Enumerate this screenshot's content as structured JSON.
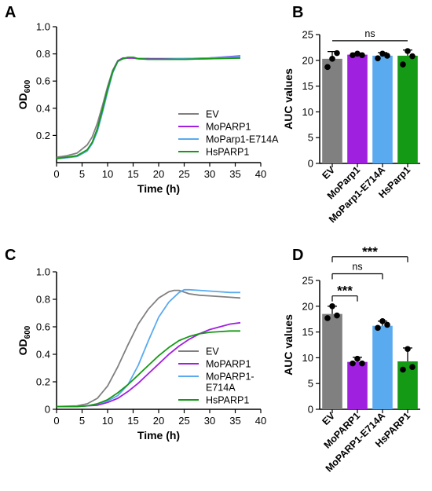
{
  "colors": {
    "EV": "#808080",
    "MoPARP1": "#a020e0",
    "MoParp1-E714A": "#5aaaf0",
    "HsPARP1": "#159a15",
    "points": "#000000",
    "axes": "#000000"
  },
  "chart_data": [
    {
      "panel": "A",
      "type": "line",
      "xlabel": "Time (h)",
      "ylabel": "OD",
      "ylabel_sub": "600",
      "xlim": [
        0,
        40
      ],
      "ylim": [
        0,
        1.0
      ],
      "xticks": [
        0,
        5,
        10,
        15,
        20,
        25,
        30,
        35,
        40
      ],
      "yticks": [
        0.2,
        0.4,
        0.6,
        0.8,
        1.0
      ],
      "ytick_labels": [
        "0.2",
        "0.4",
        "0.6",
        "0.8",
        "1.0"
      ],
      "grid": false,
      "legend_placement": "bottom-right",
      "series": [
        {
          "name": "EV",
          "color_key": "EV",
          "x": [
            0,
            2,
            4,
            6,
            7,
            8,
            9,
            10,
            11,
            12,
            13,
            14,
            15,
            16,
            18,
            20,
            25,
            30,
            36
          ],
          "y": [
            0.04,
            0.05,
            0.07,
            0.13,
            0.19,
            0.29,
            0.42,
            0.56,
            0.68,
            0.75,
            0.765,
            0.77,
            0.77,
            0.765,
            0.765,
            0.76,
            0.76,
            0.765,
            0.77
          ]
        },
        {
          "name": "MoPARP1",
          "color_key": "MoPARP1",
          "x": [
            0,
            2,
            4,
            6,
            7,
            8,
            9,
            10,
            11,
            12,
            13,
            14,
            15,
            16,
            18,
            20,
            25,
            30,
            36
          ],
          "y": [
            0.03,
            0.04,
            0.05,
            0.09,
            0.15,
            0.25,
            0.39,
            0.54,
            0.67,
            0.75,
            0.77,
            0.77,
            0.77,
            0.765,
            0.765,
            0.765,
            0.765,
            0.77,
            0.785
          ]
        },
        {
          "name": "MoParp1-E714A",
          "color_key": "MoParp1-E714A",
          "x": [
            0,
            2,
            4,
            6,
            7,
            8,
            9,
            10,
            11,
            12,
            13,
            14,
            15,
            16,
            18,
            20,
            25,
            30,
            36
          ],
          "y": [
            0.03,
            0.035,
            0.045,
            0.085,
            0.14,
            0.23,
            0.37,
            0.52,
            0.66,
            0.745,
            0.765,
            0.775,
            0.775,
            0.765,
            0.76,
            0.76,
            0.765,
            0.77,
            0.78
          ]
        },
        {
          "name": "HsPARP1",
          "color_key": "HsPARP1",
          "x": [
            0,
            2,
            4,
            6,
            7,
            8,
            9,
            10,
            11,
            12,
            13,
            14,
            15,
            16,
            18,
            20,
            25,
            30,
            36
          ],
          "y": [
            0.03,
            0.04,
            0.05,
            0.095,
            0.15,
            0.25,
            0.39,
            0.54,
            0.67,
            0.745,
            0.765,
            0.775,
            0.775,
            0.765,
            0.76,
            0.76,
            0.76,
            0.765,
            0.77
          ]
        }
      ]
    },
    {
      "panel": "B",
      "type": "bar",
      "ylabel": "AUC values",
      "ylim": [
        0,
        25
      ],
      "yticks": [
        0,
        5,
        10,
        15,
        20,
        25
      ],
      "categories": [
        "EV",
        "MoParp1",
        "MoParp1-E714A",
        "HsParp1"
      ],
      "color_keys": [
        "EV",
        "MoPARP1",
        "MoParp1-E714A",
        "HsPARP1"
      ],
      "values": [
        20.3,
        21.1,
        20.9,
        20.9
      ],
      "errors": [
        1.4,
        0.3,
        0.6,
        1.1
      ],
      "points": [
        [
          20.3,
          21.4,
          18.7
        ],
        [
          21.3,
          21.0,
          21.0
        ],
        [
          21.3,
          20.9,
          20.4
        ],
        [
          21.8,
          20.8,
          19.2
        ]
      ],
      "significance": [
        {
          "from": 0,
          "to": 3,
          "label": "ns",
          "y": 23.8
        }
      ]
    },
    {
      "panel": "C",
      "type": "line",
      "xlabel": "Time (h)",
      "ylabel": "OD",
      "ylabel_sub": "600",
      "xlim": [
        0,
        40
      ],
      "ylim": [
        0,
        1.0
      ],
      "xticks": [
        0,
        5,
        10,
        15,
        20,
        25,
        30,
        35,
        40
      ],
      "yticks": [
        0,
        0.2,
        0.4,
        0.6,
        0.8,
        1.0
      ],
      "ytick_labels": [
        "0",
        "0.2",
        "0.4",
        "0.6",
        "0.8",
        "1.0"
      ],
      "grid": false,
      "legend_placement": "bottom-right",
      "series": [
        {
          "name": "EV",
          "color_key": "EV",
          "x": [
            0,
            4,
            6,
            8,
            10,
            12,
            14,
            16,
            18,
            20,
            22,
            23,
            24,
            26,
            28,
            30,
            32,
            34,
            36
          ],
          "y": [
            0.02,
            0.025,
            0.04,
            0.08,
            0.17,
            0.31,
            0.47,
            0.62,
            0.73,
            0.81,
            0.855,
            0.865,
            0.865,
            0.84,
            0.83,
            0.825,
            0.82,
            0.815,
            0.81
          ]
        },
        {
          "name": "MoPARP1",
          "color_key": "MoPARP1",
          "x": [
            0,
            4,
            6,
            8,
            10,
            12,
            14,
            16,
            18,
            20,
            22,
            24,
            26,
            28,
            30,
            32,
            34,
            36
          ],
          "y": [
            0.02,
            0.02,
            0.025,
            0.03,
            0.05,
            0.08,
            0.13,
            0.19,
            0.26,
            0.33,
            0.4,
            0.46,
            0.51,
            0.55,
            0.58,
            0.6,
            0.62,
            0.63
          ]
        },
        {
          "name": "MoPARP1-\nE714A",
          "color_key": "MoParp1-E714A",
          "x": [
            0,
            4,
            6,
            8,
            10,
            12,
            14,
            16,
            18,
            20,
            22,
            24,
            25,
            26,
            28,
            30,
            32,
            34,
            36
          ],
          "y": [
            0.02,
            0.02,
            0.025,
            0.04,
            0.06,
            0.1,
            0.18,
            0.32,
            0.5,
            0.67,
            0.78,
            0.85,
            0.87,
            0.87,
            0.865,
            0.86,
            0.855,
            0.85,
            0.85
          ]
        },
        {
          "name": "HsPARP1",
          "color_key": "HsPARP1",
          "x": [
            0,
            4,
            6,
            8,
            10,
            12,
            14,
            16,
            18,
            20,
            22,
            24,
            26,
            28,
            30,
            32,
            34,
            36
          ],
          "y": [
            0.02,
            0.02,
            0.025,
            0.04,
            0.07,
            0.12,
            0.18,
            0.25,
            0.32,
            0.39,
            0.45,
            0.5,
            0.53,
            0.55,
            0.56,
            0.565,
            0.57,
            0.57
          ]
        }
      ]
    },
    {
      "panel": "D",
      "type": "bar",
      "ylabel": "AUC values",
      "ylim": [
        0,
        25
      ],
      "yticks": [
        0,
        5,
        10,
        15,
        20,
        25
      ],
      "categories": [
        "EV",
        "MoPARP1",
        "MoPARP1-E714A",
        "HsPARP1"
      ],
      "color_keys": [
        "EV",
        "MoPARP1",
        "MoParp1-E714A",
        "HsPARP1"
      ],
      "values": [
        18.5,
        9.2,
        16.2,
        9.3
      ],
      "errors": [
        1.5,
        0.9,
        0.9,
        2.6
      ],
      "points": [
        [
          20.0,
          18.2,
          17.7
        ],
        [
          9.8,
          8.9,
          8.9
        ],
        [
          17.1,
          16.4,
          15.8
        ],
        [
          11.7,
          8.2,
          7.7
        ]
      ],
      "significance": [
        {
          "from": 0,
          "to": 3,
          "label": "***",
          "y": 29.6
        },
        {
          "from": 0,
          "to": 2,
          "label": "ns",
          "y": 26.3
        },
        {
          "from": 0,
          "to": 1,
          "label": "***",
          "y": 22.0
        }
      ]
    }
  ]
}
